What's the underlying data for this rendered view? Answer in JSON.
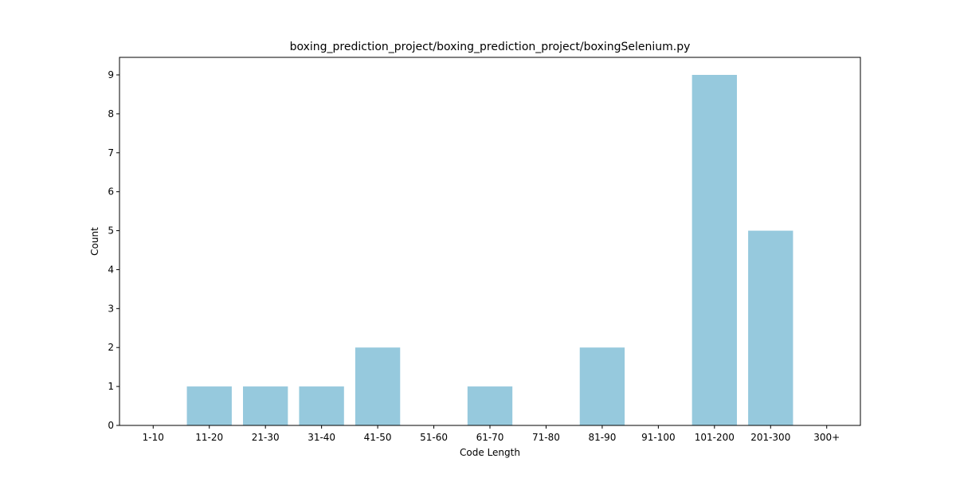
{
  "chart_data": {
    "type": "bar",
    "title": "boxing_prediction_project/boxing_prediction_project/boxingSelenium.py",
    "xlabel": "Code Length",
    "ylabel": "Count",
    "categories": [
      "1-10",
      "11-20",
      "21-30",
      "31-40",
      "41-50",
      "51-60",
      "61-70",
      "71-80",
      "81-90",
      "91-100",
      "101-200",
      "201-300",
      "300+"
    ],
    "values": [
      0,
      1,
      1,
      1,
      2,
      0,
      1,
      0,
      2,
      0,
      9,
      5,
      0
    ],
    "ylim": [
      0,
      9.45
    ],
    "yticks": [
      0,
      1,
      2,
      3,
      4,
      5,
      6,
      7,
      8,
      9
    ],
    "bar_color": "#96c9dd",
    "grid": false,
    "legend": "none"
  }
}
